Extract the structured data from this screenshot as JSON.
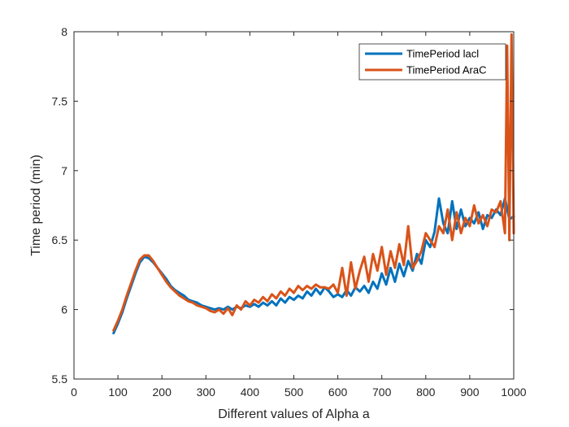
{
  "chart_data": {
    "type": "line",
    "title": "",
    "xlabel": "Different values of Alpha a",
    "ylabel": "Time period (min)",
    "xlim": [
      0,
      1000
    ],
    "ylim": [
      5.5,
      8
    ],
    "xticks": [
      0,
      100,
      200,
      300,
      400,
      500,
      600,
      700,
      800,
      900,
      1000
    ],
    "yticks": [
      5.5,
      6,
      6.5,
      7,
      7.5,
      8
    ],
    "xtick_labels": [
      "0",
      "100",
      "200",
      "300",
      "400",
      "500",
      "600",
      "700",
      "800",
      "900",
      "1000"
    ],
    "ytick_labels": [
      "5.5",
      "6",
      "6.5",
      "7",
      "7.5",
      "8"
    ],
    "grid": false,
    "legend_position": "top-right",
    "series": [
      {
        "name": "TimePeriod lacl",
        "color": "#0072BD",
        "x": [
          90,
          100,
          110,
          120,
          130,
          140,
          150,
          160,
          170,
          180,
          190,
          200,
          210,
          220,
          230,
          240,
          250,
          260,
          270,
          280,
          290,
          300,
          310,
          320,
          330,
          340,
          350,
          360,
          370,
          380,
          390,
          400,
          410,
          420,
          430,
          440,
          450,
          460,
          470,
          480,
          490,
          500,
          510,
          520,
          530,
          540,
          550,
          560,
          570,
          580,
          590,
          600,
          610,
          620,
          630,
          640,
          650,
          660,
          670,
          680,
          690,
          700,
          710,
          720,
          730,
          740,
          750,
          760,
          770,
          780,
          790,
          800,
          810,
          820,
          830,
          840,
          850,
          860,
          870,
          880,
          890,
          900,
          910,
          920,
          930,
          940,
          950,
          960,
          970,
          980,
          990,
          1000
        ],
        "values": [
          5.83,
          5.9,
          5.98,
          6.08,
          6.17,
          6.26,
          6.34,
          6.38,
          6.37,
          6.34,
          6.3,
          6.26,
          6.22,
          6.17,
          6.14,
          6.12,
          6.1,
          6.07,
          6.06,
          6.05,
          6.03,
          6.02,
          6.01,
          6.0,
          6.01,
          6.0,
          6.02,
          6.0,
          6.02,
          6.01,
          6.03,
          6.02,
          6.04,
          6.02,
          6.05,
          6.03,
          6.06,
          6.03,
          6.08,
          6.05,
          6.09,
          6.07,
          6.1,
          6.08,
          6.13,
          6.1,
          6.15,
          6.11,
          6.16,
          6.13,
          6.09,
          6.11,
          6.09,
          6.14,
          6.1,
          6.16,
          6.13,
          6.17,
          6.12,
          6.2,
          6.15,
          6.26,
          6.18,
          6.3,
          6.2,
          6.33,
          6.24,
          6.35,
          6.28,
          6.4,
          6.33,
          6.5,
          6.45,
          6.56,
          6.8,
          6.62,
          6.55,
          6.78,
          6.58,
          6.72,
          6.6,
          6.66,
          6.62,
          6.7,
          6.58,
          6.68,
          6.66,
          6.72,
          6.68,
          6.8,
          6.65,
          6.67
        ]
      },
      {
        "name": "TimePeriod AraC",
        "color": "#D95319",
        "x": [
          90,
          100,
          110,
          120,
          130,
          140,
          150,
          160,
          170,
          180,
          190,
          200,
          210,
          220,
          230,
          240,
          250,
          260,
          270,
          280,
          290,
          300,
          310,
          320,
          330,
          340,
          350,
          360,
          370,
          380,
          390,
          400,
          410,
          420,
          430,
          440,
          450,
          460,
          470,
          480,
          490,
          500,
          510,
          520,
          530,
          540,
          550,
          560,
          570,
          580,
          590,
          600,
          610,
          620,
          630,
          640,
          650,
          660,
          670,
          680,
          690,
          700,
          710,
          720,
          730,
          740,
          750,
          760,
          770,
          780,
          790,
          800,
          810,
          820,
          830,
          840,
          850,
          860,
          870,
          880,
          890,
          900,
          910,
          920,
          930,
          940,
          950,
          960,
          970,
          980,
          985,
          990,
          995,
          1000
        ],
        "values": [
          5.85,
          5.92,
          6.0,
          6.1,
          6.19,
          6.28,
          6.36,
          6.39,
          6.39,
          6.35,
          6.3,
          6.25,
          6.2,
          6.16,
          6.13,
          6.1,
          6.08,
          6.06,
          6.05,
          6.03,
          6.02,
          6.01,
          5.99,
          5.98,
          6.0,
          5.97,
          6.01,
          5.96,
          6.03,
          6.0,
          6.06,
          6.03,
          6.07,
          6.05,
          6.09,
          6.06,
          6.11,
          6.08,
          6.13,
          6.1,
          6.15,
          6.12,
          6.17,
          6.14,
          6.17,
          6.15,
          6.18,
          6.16,
          6.16,
          6.15,
          6.18,
          6.12,
          6.3,
          6.1,
          6.34,
          6.15,
          6.28,
          6.38,
          6.2,
          6.4,
          6.28,
          6.45,
          6.25,
          6.42,
          6.3,
          6.47,
          6.32,
          6.6,
          6.3,
          6.35,
          6.42,
          6.55,
          6.5,
          6.45,
          6.6,
          6.55,
          6.72,
          6.5,
          6.7,
          6.55,
          6.66,
          6.6,
          6.75,
          6.62,
          6.68,
          6.6,
          6.72,
          6.7,
          6.78,
          6.55,
          7.9,
          6.5,
          7.98,
          6.55
        ]
      }
    ]
  }
}
